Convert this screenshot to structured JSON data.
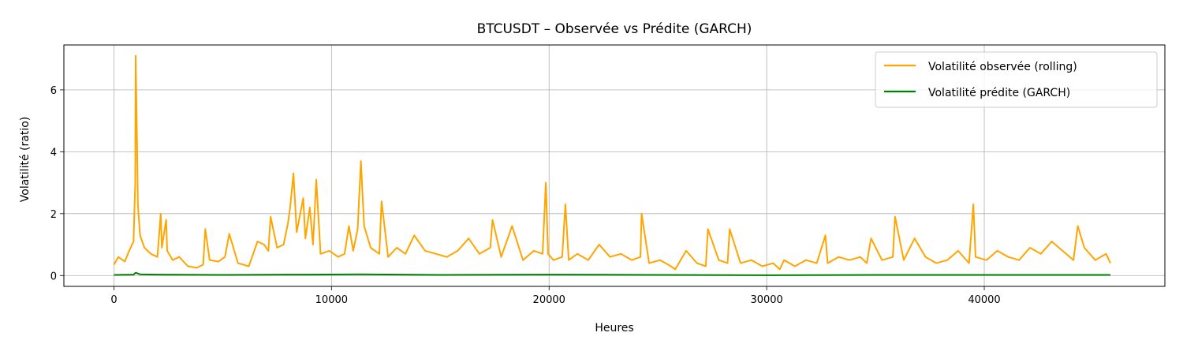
{
  "chart_data": {
    "type": "line",
    "title": "BTCUSDT – Observée vs Prédite (GARCH)",
    "xlabel": "Heures",
    "ylabel": "Volatilité (ratio)",
    "xlim": [
      -2300,
      48300
    ],
    "ylim": [
      -0.35,
      7.45
    ],
    "xticks": [
      0,
      10000,
      20000,
      30000,
      40000
    ],
    "yticks": [
      0,
      2,
      4,
      6
    ],
    "grid": true,
    "legend_position": "top-right",
    "series": [
      {
        "name": "Volatilité observée (rolling)",
        "color": "#ffa500",
        "x": [
          0,
          200,
          500,
          700,
          900,
          980,
          1000,
          1060,
          1100,
          1200,
          1400,
          1700,
          2000,
          2150,
          2200,
          2400,
          2450,
          2700,
          3000,
          3400,
          3800,
          4100,
          4200,
          4400,
          4800,
          5100,
          5300,
          5700,
          6200,
          6600,
          6900,
          7100,
          7200,
          7500,
          7800,
          8000,
          8100,
          8250,
          8400,
          8700,
          8800,
          9000,
          9150,
          9300,
          9500,
          9900,
          10300,
          10600,
          10800,
          11000,
          11200,
          11350,
          11500,
          11800,
          12200,
          12300,
          12600,
          13000,
          13400,
          13800,
          14300,
          14800,
          15300,
          15800,
          16300,
          16800,
          17300,
          17400,
          17800,
          18300,
          18800,
          19300,
          19700,
          19850,
          19950,
          20200,
          20600,
          20750,
          20900,
          21300,
          21800,
          22300,
          22800,
          23300,
          23800,
          24200,
          24250,
          24600,
          25100,
          25600,
          25800,
          26300,
          26800,
          27200,
          27300,
          27800,
          28200,
          28300,
          28800,
          29300,
          29800,
          30300,
          30600,
          30800,
          31300,
          31800,
          32300,
          32700,
          32800,
          33300,
          33800,
          34300,
          34600,
          34800,
          35300,
          35800,
          35900,
          36300,
          36800,
          37300,
          37800,
          38300,
          38800,
          39300,
          39500,
          39600,
          40100,
          40600,
          41100,
          41600,
          42100,
          42600,
          43100,
          43600,
          44100,
          44300,
          44600,
          45100,
          45600,
          45800
        ],
        "values": [
          0.35,
          0.6,
          0.45,
          0.8,
          1.1,
          3.0,
          7.1,
          4.4,
          2.3,
          1.3,
          0.9,
          0.7,
          0.6,
          2.0,
          0.9,
          1.8,
          0.8,
          0.5,
          0.6,
          0.3,
          0.25,
          0.35,
          1.5,
          0.5,
          0.45,
          0.6,
          1.35,
          0.4,
          0.3,
          1.1,
          1.0,
          0.8,
          1.9,
          0.9,
          1.0,
          1.7,
          2.2,
          3.3,
          1.4,
          2.5,
          1.2,
          2.2,
          1.0,
          3.1,
          0.7,
          0.8,
          0.6,
          0.7,
          1.6,
          0.8,
          1.5,
          3.7,
          1.6,
          0.9,
          0.7,
          2.4,
          0.6,
          0.9,
          0.7,
          1.3,
          0.8,
          0.7,
          0.6,
          0.8,
          1.2,
          0.7,
          0.9,
          1.8,
          0.6,
          1.6,
          0.5,
          0.8,
          0.7,
          3.0,
          0.7,
          0.5,
          0.6,
          2.3,
          0.5,
          0.7,
          0.5,
          1.0,
          0.6,
          0.7,
          0.5,
          0.6,
          2.0,
          0.4,
          0.5,
          0.3,
          0.2,
          0.8,
          0.4,
          0.3,
          1.5,
          0.5,
          0.4,
          1.5,
          0.4,
          0.5,
          0.3,
          0.4,
          0.2,
          0.5,
          0.3,
          0.5,
          0.4,
          1.3,
          0.4,
          0.6,
          0.5,
          0.6,
          0.4,
          1.2,
          0.5,
          0.6,
          1.9,
          0.5,
          1.2,
          0.6,
          0.4,
          0.5,
          0.8,
          0.4,
          2.3,
          0.6,
          0.5,
          0.8,
          0.6,
          0.5,
          0.9,
          0.7,
          1.1,
          0.8,
          0.5,
          1.6,
          0.9,
          0.5,
          0.7,
          0.4
        ]
      },
      {
        "name": "Volatilité prédite (GARCH)",
        "color": "#008000",
        "x": [
          0,
          900,
          1000,
          1200,
          2000,
          5000,
          8000,
          9000,
          11300,
          15000,
          20000,
          25000,
          30000,
          35000,
          40000,
          45800
        ],
        "values": [
          0.02,
          0.03,
          0.09,
          0.04,
          0.03,
          0.02,
          0.03,
          0.03,
          0.04,
          0.02,
          0.03,
          0.02,
          0.01,
          0.02,
          0.02,
          0.02
        ]
      }
    ]
  }
}
